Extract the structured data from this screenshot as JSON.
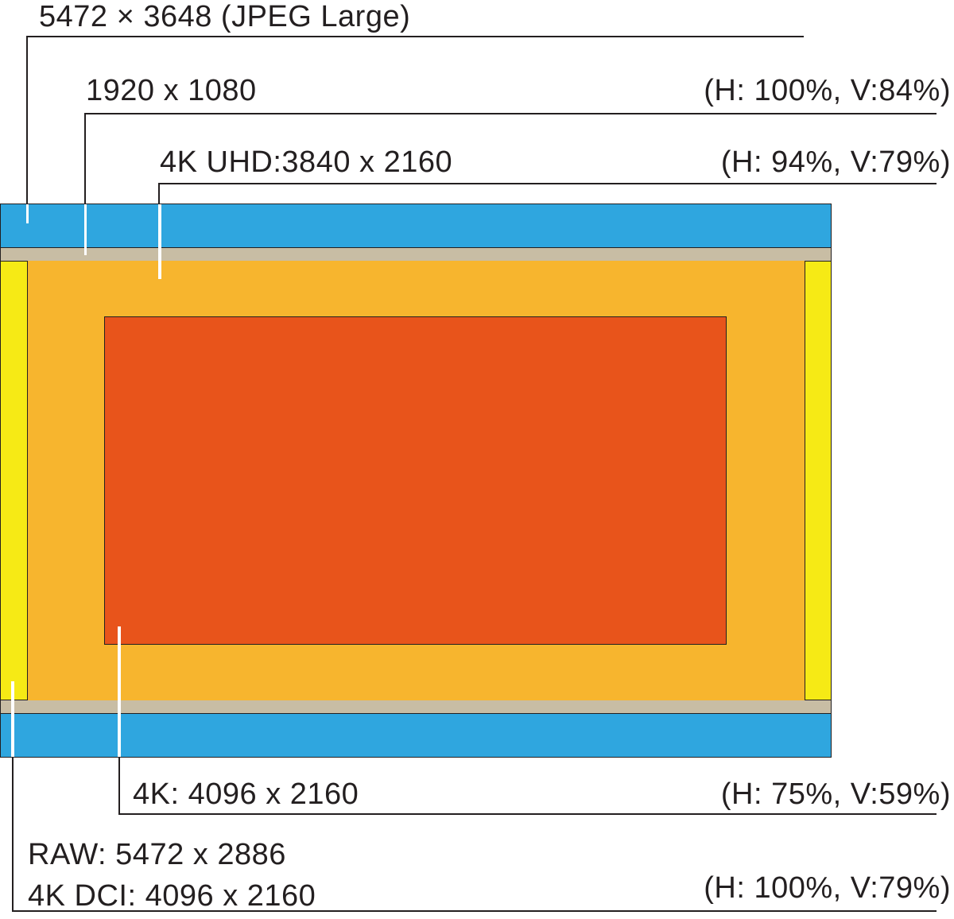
{
  "labels": {
    "jpeg": "5472 × 3648 (JPEG Large)",
    "fhd": "1920 x 1080",
    "fhd_ratio": "(H: 100%, V:84%)",
    "uhd": "4K UHD:3840 x 2160",
    "uhd_ratio": "(H: 94%, V:79%)",
    "k4": "4K: 4096 x 2160",
    "k4_ratio": "(H: 75%, V:59%)",
    "raw": "RAW: 5472 x 2886",
    "dci": "4K DCI: 4096 x 2160",
    "dci_ratio": "(H: 100%, V:79%)"
  },
  "colors": {
    "jpeg": "#2fa6df",
    "fhd": "#c8bda4",
    "raw_dci": "#f6ea15",
    "uhd": "#f7b52e",
    "k4": "#e8541b",
    "line": "#231f20"
  }
}
